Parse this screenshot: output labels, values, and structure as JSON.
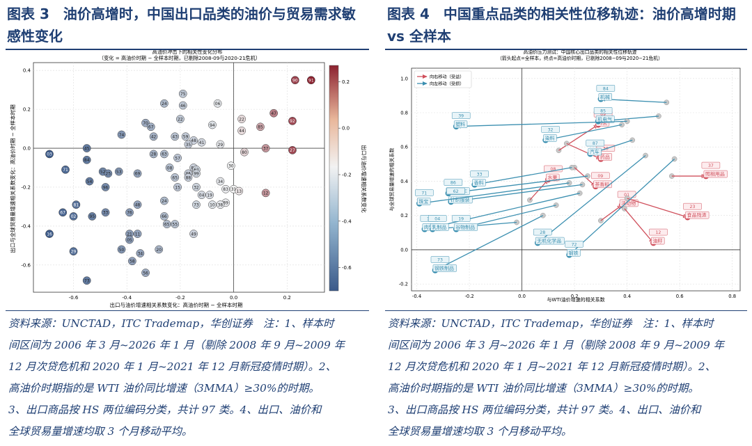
{
  "left_panel": {
    "figure_title": "图表 3　油价高增时，中国出口品类的油价与贸易需求敏感性变化",
    "source_note": "资料来源：UNCTAD，ITC Trademap，华创证券　注：1、样本时间区间为 2006 年 3 月~2026 年 1 月（剔除 2008 年 9 月~2009 年 12 月次贷危机和 2020 年 1 月~2021 年 12 月新冠疫情时期）。2、高油价时期指的是 WTI 油价同比增速（3MMA）≥30%的时期。3、出口商品按 HS 两位编码分类，共计 97 类。4、出口、油价和全球贸易量增速均取 3 个月移动平均。",
    "source_note_lines": [
      "资料来源：UNCTAD，ITC Trademap，华创证券　注：1、样本时",
      "间区间为 2006 年 3 月~2026 年 1 月（剔除 2008 年 9 月~2009 年",
      "12 月次贷危机和 2020 年 1 月~2021 年 12 月新冠疫情时期）。2、",
      "高油价时期指的是 WTI 油价同比增速（3MMA）≥30%的时期。",
      "3、出口商品按 HS 两位编码分类，共计 97 类。4、出口、油价和",
      "全球贸易量增速均取 3 个月移动平均。"
    ]
  },
  "right_panel": {
    "figure_title": "图表 4　中国重点品类的相关性位移轨迹：油价高增时期 vs 全样本",
    "source_note": "资料来源：UNCTAD，ITC Trademap，华创证券　注：1、样本时间区间为 2006 年 3 月~2026 年 1 月（剔除 2008 年 9 月~2009 年 12 月次贷危机和 2020 年 1 月~2021 年 12 月新冠疫情时期）。2、高油价时期指的是 WTI 油价同比增速（3MMA）≥30%的时期。3、出口商品按 HS 两位编码分类，共计 97 类。4、出口、油价和全球贸易量增速均取 3 个月移动平均。",
    "source_note_lines": [
      "资料来源：UNCTAD，ITC Trademap，华创证券　注：1、样本时",
      "间区间为 2006 年 3 月~2026 年 1 月（剔除 2008 年 9 月~2009 年",
      "12 月次贷危机和 2020 年 1 月~2021 年 12 月新冠疫情时期）。2、",
      "高油价时期指的是 WTI 油价同比增速（3MMA）≥30%的时期。",
      "3、出口商品按 HS 两位编码分类，共计 97 类。4、出口、油价和",
      "全球贸易量增速均取 3 个月移动平均。"
    ]
  },
  "chart_data": [
    {
      "type": "scatter",
      "title": "高油价冲击下的相关性变化分布",
      "subtitle": "（变化 = 高油价时期 − 全样本时期，已剔除2008-09与2020-21危机）",
      "xlabel": "出口与油价增速相关系数变化：高油价时期 − 全样本时期",
      "ylabel": "出口与全球贸易量增速相关系数变化：高油价时期 − 全样本时期",
      "colorbar_label": "出口与油价增速相关系数变化",
      "xlim": [
        -0.75,
        0.34
      ],
      "ylim": [
        -0.74,
        0.44
      ],
      "xticks": [
        -0.6,
        -0.4,
        -0.2,
        0.0,
        0.2
      ],
      "yticks": [
        -0.6,
        -0.4,
        -0.2,
        0.0,
        0.2,
        0.4
      ],
      "colorbar_ticks": [
        0.2,
        0.0,
        -0.2,
        -0.4,
        -0.6
      ],
      "colorbar_range": [
        -0.7,
        0.27
      ],
      "grid": true,
      "reference_lines": {
        "x": 0,
        "y": 0
      },
      "colors": {
        "negative": "#3b5a8a",
        "neutral": "#f2f2f2",
        "positive": "#8c2230"
      },
      "points": [
        {
          "label": "91",
          "x": 0.29,
          "y": 0.35
        },
        {
          "label": "90",
          "x": 0.23,
          "y": 0.35
        },
        {
          "label": "92",
          "x": 0.22,
          "y": 0.14
        },
        {
          "label": "27",
          "x": 0.22,
          "y": -0.01
        },
        {
          "label": "47",
          "x": 0.15,
          "y": 0.18
        },
        {
          "label": "85",
          "x": 0.1,
          "y": 0.11
        },
        {
          "label": "37",
          "x": 0.12,
          "y": 0.0
        },
        {
          "label": "80",
          "x": 0.04,
          "y": -0.02
        },
        {
          "label": "12",
          "x": 0.12,
          "y": -0.23
        },
        {
          "label": "30",
          "x": -0.01,
          "y": -0.09
        },
        {
          "label": "31",
          "x": 0.0,
          "y": -0.21
        },
        {
          "label": "22",
          "x": 0.03,
          "y": 0.15
        },
        {
          "label": "44",
          "x": 0.03,
          "y": 0.09
        },
        {
          "label": "06",
          "x": -0.06,
          "y": 0.23
        },
        {
          "label": "94",
          "x": -0.08,
          "y": 0.12
        },
        {
          "label": "75",
          "x": -0.19,
          "y": 0.28
        },
        {
          "label": "24",
          "x": -0.26,
          "y": 0.23
        },
        {
          "label": "46",
          "x": -0.19,
          "y": 0.22
        },
        {
          "label": "22",
          "x": -0.2,
          "y": 0.15
        },
        {
          "label": "70",
          "x": -0.33,
          "y": 0.13
        },
        {
          "label": "67",
          "x": -0.31,
          "y": 0.11
        },
        {
          "label": "74",
          "x": -0.42,
          "y": 0.07
        },
        {
          "label": "42",
          "x": -0.3,
          "y": 0.06
        },
        {
          "label": "43",
          "x": -0.22,
          "y": 0.06
        },
        {
          "label": "59",
          "x": -0.18,
          "y": 0.06
        },
        {
          "label": "48",
          "x": -0.15,
          "y": 0.04
        },
        {
          "label": "41",
          "x": -0.12,
          "y": 0.03
        },
        {
          "label": "35",
          "x": -0.17,
          "y": 0.02
        },
        {
          "label": "29",
          "x": -0.05,
          "y": 0.02
        },
        {
          "label": "45",
          "x": -0.55,
          "y": 0.0
        },
        {
          "label": "84",
          "x": -0.55,
          "y": -0.06
        },
        {
          "label": "28",
          "x": -0.3,
          "y": -0.03
        },
        {
          "label": "63",
          "x": -0.26,
          "y": -0.03
        },
        {
          "label": "57",
          "x": -0.21,
          "y": -0.05
        },
        {
          "label": "08",
          "x": -0.24,
          "y": -0.1
        },
        {
          "label": "87",
          "x": -0.15,
          "y": -0.1
        },
        {
          "label": "05",
          "x": -0.17,
          "y": -0.13
        },
        {
          "label": "62",
          "x": -0.14,
          "y": -0.11
        },
        {
          "label": "71",
          "x": -0.63,
          "y": -0.11
        },
        {
          "label": "52",
          "x": -0.49,
          "y": -0.12
        },
        {
          "label": "25",
          "x": -0.47,
          "y": -0.13
        },
        {
          "label": "53",
          "x": -0.43,
          "y": -0.12
        },
        {
          "label": "69",
          "x": -0.36,
          "y": -0.13
        },
        {
          "label": "65",
          "x": -0.22,
          "y": -0.15
        },
        {
          "label": "88",
          "x": -0.17,
          "y": -0.15
        },
        {
          "label": "99",
          "x": -0.14,
          "y": -0.13
        },
        {
          "label": "54",
          "x": -0.54,
          "y": -0.17
        },
        {
          "label": "96",
          "x": -0.48,
          "y": -0.2
        },
        {
          "label": "15",
          "x": -0.21,
          "y": -0.2
        },
        {
          "label": "32",
          "x": -0.14,
          "y": -0.2
        },
        {
          "label": "34",
          "x": -0.05,
          "y": -0.17
        },
        {
          "label": "19",
          "x": -0.09,
          "y": -0.24
        },
        {
          "label": "04",
          "x": -0.12,
          "y": -0.24
        },
        {
          "label": "83",
          "x": -0.03,
          "y": -0.21
        },
        {
          "label": "89",
          "x": -0.03,
          "y": -0.28
        },
        {
          "label": "13",
          "x": 0.02,
          "y": -0.22
        },
        {
          "label": "38",
          "x": -0.05,
          "y": -0.29
        },
        {
          "label": "10",
          "x": -0.08,
          "y": -0.29
        },
        {
          "label": "73",
          "x": -0.14,
          "y": -0.29
        },
        {
          "label": "81",
          "x": -0.59,
          "y": -0.29
        },
        {
          "label": "33",
          "x": -0.48,
          "y": -0.33
        },
        {
          "label": "76",
          "x": -0.39,
          "y": -0.33
        },
        {
          "label": "48",
          "x": -0.36,
          "y": -0.29
        },
        {
          "label": "95",
          "x": -0.53,
          "y": -0.35
        },
        {
          "label": "02",
          "x": -0.6,
          "y": -0.35
        },
        {
          "label": "67",
          "x": -0.64,
          "y": -0.33
        },
        {
          "label": "24",
          "x": -0.26,
          "y": -0.27
        },
        {
          "label": "66",
          "x": -0.26,
          "y": -0.35
        },
        {
          "label": "65",
          "x": -0.25,
          "y": -0.39
        },
        {
          "label": "55",
          "x": -0.22,
          "y": -0.39
        },
        {
          "label": "21",
          "x": -0.39,
          "y": -0.44
        },
        {
          "label": "11",
          "x": -0.36,
          "y": -0.44
        },
        {
          "label": "05",
          "x": -0.39,
          "y": -0.47
        },
        {
          "label": "50",
          "x": -0.42,
          "y": -0.52
        },
        {
          "label": "20",
          "x": -0.28,
          "y": -0.52
        },
        {
          "label": "34",
          "x": -0.35,
          "y": -0.54
        },
        {
          "label": "58",
          "x": -0.38,
          "y": -0.58
        },
        {
          "label": "49",
          "x": -0.15,
          "y": -0.44
        },
        {
          "label": "56",
          "x": -0.33,
          "y": -0.64
        },
        {
          "label": "29",
          "x": -0.6,
          "y": -0.53
        },
        {
          "label": "16",
          "x": -0.69,
          "y": -0.44
        },
        {
          "label": "03",
          "x": -0.69,
          "y": -0.03
        },
        {
          "label": "73",
          "x": -0.55,
          "y": -0.68
        }
      ]
    },
    {
      "type": "scatter",
      "title": "高油价压力测试：中国核心出口品类的相关性位移轨迹",
      "subtitle": "（箭头起点=全样本，终点=高油价时期，已剔除2008−09与2020−21危机）",
      "xlabel": "与WTI油价增速的相关系数",
      "ylabel": "与全球贸易量增速的相关系数",
      "xlim": [
        -0.42,
        0.83
      ],
      "ylim": [
        -0.24,
        1.06
      ],
      "xticks": [
        -0.4,
        -0.2,
        0.0,
        0.2,
        0.4,
        0.6,
        0.8
      ],
      "yticks": [
        -0.2,
        0.0,
        0.2,
        0.4,
        0.6,
        0.8,
        1.0
      ],
      "grid": true,
      "reference_lines": {
        "x": 0,
        "y": 0
      },
      "colors": {
        "right_move": "#d0505c",
        "left_move": "#3b8fb0",
        "start": "#c8c8c8"
      },
      "legend": {
        "position": "top-left",
        "entries": [
          "向右移动（受益）",
          "向左移动（受损）"
        ]
      },
      "series": [
        {
          "name": "向右移动（受益）",
          "arrows": [
            {
              "code": "69",
              "name": "陶瓷",
              "start": [
                0.14,
                0.58
              ],
              "end": [
                0.29,
                0.73
              ]
            },
            {
              "code": "30",
              "name": "药品",
              "start": [
                0.17,
                0.62
              ],
              "end": [
                0.3,
                0.53
              ]
            },
            {
              "code": "08",
              "name": "水果",
              "start": [
                0.03,
                0.29
              ],
              "end": [
                0.1,
                0.41
              ]
            },
            {
              "code": "09",
              "name": "茶香料",
              "start": [
                0.2,
                0.48
              ],
              "end": [
                0.28,
                0.37
              ]
            },
            {
              "code": "01",
              "name": "活动物",
              "start": [
                0.3,
                0.17
              ],
              "end": [
                0.38,
                0.26
              ]
            },
            {
              "code": "12",
              "name": "油籽",
              "start": [
                0.39,
                0.24
              ],
              "end": [
                0.5,
                0.04
              ]
            },
            {
              "code": "23",
              "name": "食品残渣",
              "start": [
                0.4,
                0.3
              ],
              "end": [
                0.63,
                0.19
              ]
            },
            {
              "code": "37",
              "name": "照相用品",
              "start": [
                0.57,
                0.43
              ],
              "end": [
                0.7,
                0.43
              ]
            }
          ]
        },
        {
          "name": "向左移动（受损）",
          "arrows": [
            {
              "code": "84",
              "name": "机械",
              "start": [
                0.55,
                0.86
              ],
              "end": [
                0.3,
                0.88
              ]
            },
            {
              "code": "85",
              "name": "机电气",
              "start": [
                0.52,
                0.78
              ],
              "end": [
                0.29,
                0.75
              ]
            },
            {
              "code": "39",
              "name": "塑料",
              "start": [
                0.4,
                0.75
              ],
              "end": [
                -0.25,
                0.72
              ]
            },
            {
              "code": "32",
              "name": "染料",
              "start": [
                0.38,
                0.73
              ],
              "end": [
                0.09,
                0.64
              ]
            },
            {
              "code": "87",
              "name": "汽车",
              "start": [
                0.42,
                0.64
              ],
              "end": [
                0.26,
                0.56
              ]
            },
            {
              "code": "33",
              "name": "香料",
              "start": [
                0.19,
                0.48
              ],
              "end": [
                -0.18,
                0.38
              ]
            },
            {
              "code": "86",
              "name": "铁路机车",
              "start": [
                0.25,
                0.43
              ],
              "end": [
                -0.28,
                0.33
              ]
            },
            {
              "code": "62",
              "name": "针织服装",
              "start": [
                0.23,
                0.38
              ],
              "end": [
                -0.27,
                0.28
              ]
            },
            {
              "code": "71",
              "name": "珠宝",
              "start": [
                0.18,
                0.39
              ],
              "end": [
                -0.39,
                0.27
              ]
            },
            {
              "code": "16",
              "name": "肉制品",
              "start": [
                0.22,
                0.33
              ],
              "end": [
                -0.37,
                0.12
              ]
            },
            {
              "code": "04",
              "name": "乳制品",
              "start": [
                -0.02,
                0.16
              ],
              "end": [
                -0.34,
                0.12
              ]
            },
            {
              "code": "19",
              "name": "谷物制品",
              "start": [
                0.13,
                0.26
              ],
              "end": [
                -0.25,
                0.12
              ]
            },
            {
              "code": "28",
              "name": "无机化学品",
              "start": [
                0.47,
                0.55
              ],
              "end": [
                0.06,
                0.04
              ]
            },
            {
              "code": "72",
              "name": "钢铁",
              "start": [
                0.58,
                0.53
              ],
              "end": [
                0.18,
                -0.03
              ]
            },
            {
              "code": "73",
              "name": "钢铁制品",
              "start": [
                0.08,
                0.2
              ],
              "end": [
                -0.33,
                -0.12
              ]
            }
          ]
        }
      ]
    }
  ]
}
